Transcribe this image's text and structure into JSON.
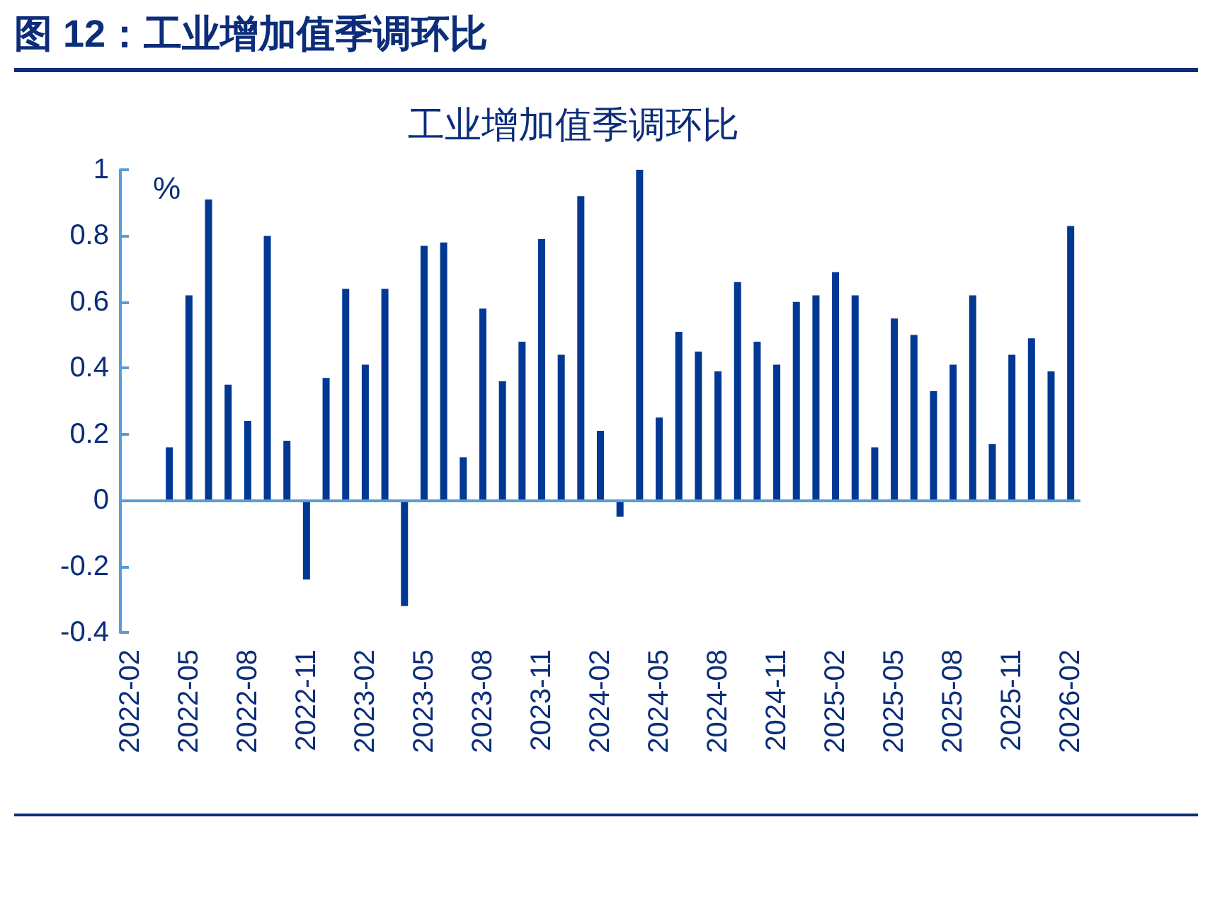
{
  "chart_data": {
    "type": "bar",
    "title": "图 12：工业增加值季调环比",
    "subtitle": "工业增加值季调环比",
    "ylabel": "%",
    "categories": [
      "2022-02",
      null,
      null,
      "2022-05",
      null,
      null,
      "2022-08",
      null,
      null,
      "2022-11",
      null,
      null,
      "2023-02",
      null,
      null,
      "2023-05",
      null,
      null,
      "2023-08",
      null,
      null,
      "2023-11",
      null,
      null,
      "2024-02",
      null,
      null,
      "2024-05",
      null,
      null,
      "2024-08",
      null,
      null,
      "2024-11",
      null,
      null,
      "2025-02",
      null,
      null,
      "2025-05",
      null,
      null,
      "2025-08",
      null,
      null,
      "2025-11",
      null,
      null,
      "2026-02"
    ],
    "values": [
      null,
      null,
      0.16,
      0.62,
      0.91,
      0.35,
      0.24,
      0.8,
      0.18,
      -0.24,
      0.37,
      0.64,
      0.41,
      0.64,
      -0.32,
      0.77,
      0.78,
      0.13,
      0.58,
      0.36,
      0.48,
      0.79,
      0.44,
      0.92,
      0.21,
      -0.05,
      1.0,
      0.25,
      0.51,
      0.45,
      0.39,
      0.66,
      0.48,
      0.41,
      0.6,
      0.62,
      0.69,
      0.62,
      0.16,
      0.55,
      0.5,
      0.33,
      0.41,
      0.62,
      0.17,
      0.44,
      0.49,
      0.39,
      0.83
    ],
    "color": "#003894",
    "ylim": [
      -0.4,
      1
    ],
    "yticks": [
      -0.4,
      -0.2,
      0,
      0.2,
      0.4,
      0.6,
      0.8,
      1
    ],
    "grid": false,
    "ref_lines": [
      {
        "axis": "y",
        "value": 0,
        "color": "#5b9bd5"
      }
    ]
  }
}
